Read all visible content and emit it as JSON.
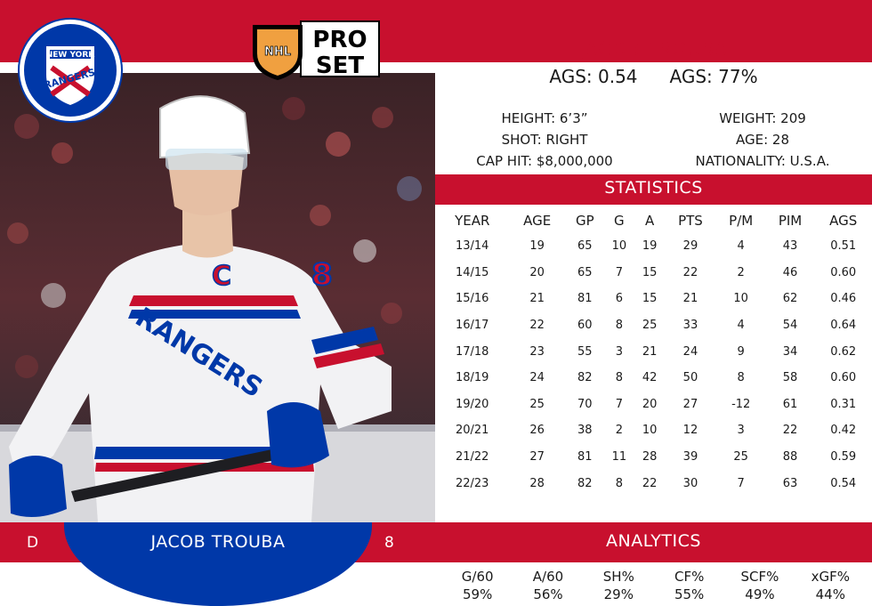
{
  "player": {
    "name": "JACOB TROUBA",
    "position": "D",
    "number": "8"
  },
  "ags_summary": {
    "score": "AGS: 0.54",
    "percentile": "AGS: 77%"
  },
  "bio": {
    "height": "HEIGHT: 6’3”",
    "shot": "SHOT: RIGHT",
    "cap_hit": "CAP HIT: $8,000,000",
    "weight": "WEIGHT: 209",
    "age": "AGE: 28",
    "nationality": "NATIONALITY: U.S.A."
  },
  "team_logo": {
    "line1": "NEW YORK",
    "line2": "RANGERS"
  },
  "brand_logo": {
    "league": "NHL",
    "line1": "PRO",
    "line2": "SET"
  },
  "jersey": {
    "letters": "RANGERS",
    "captain": "C",
    "number": "8"
  },
  "sections": {
    "statistics": "STATISTICS",
    "analytics": "ANALYTICS"
  },
  "stats": {
    "headers": [
      "YEAR",
      "AGE",
      "GP",
      "G",
      "A",
      "PTS",
      "P/M",
      "PIM",
      "AGS"
    ],
    "rows": [
      [
        "13/14",
        "19",
        "65",
        "10",
        "19",
        "29",
        "4",
        "43",
        "0.51"
      ],
      [
        "14/15",
        "20",
        "65",
        "7",
        "15",
        "22",
        "2",
        "46",
        "0.60"
      ],
      [
        "15/16",
        "21",
        "81",
        "6",
        "15",
        "21",
        "10",
        "62",
        "0.46"
      ],
      [
        "16/17",
        "22",
        "60",
        "8",
        "25",
        "33",
        "4",
        "54",
        "0.64"
      ],
      [
        "17/18",
        "23",
        "55",
        "3",
        "21",
        "24",
        "9",
        "34",
        "0.62"
      ],
      [
        "18/19",
        "24",
        "82",
        "8",
        "42",
        "50",
        "8",
        "58",
        "0.60"
      ],
      [
        "19/20",
        "25",
        "70",
        "7",
        "20",
        "27",
        "-12",
        "61",
        "0.31"
      ],
      [
        "20/21",
        "26",
        "38",
        "2",
        "10",
        "12",
        "3",
        "22",
        "0.42"
      ],
      [
        "21/22",
        "27",
        "81",
        "11",
        "28",
        "39",
        "25",
        "88",
        "0.59"
      ],
      [
        "22/23",
        "28",
        "82",
        "8",
        "22",
        "30",
        "7",
        "63",
        "0.54"
      ]
    ]
  },
  "analytics": [
    {
      "label": "G/60",
      "value": "59%"
    },
    {
      "label": "A/60",
      "value": "56%"
    },
    {
      "label": "SH%",
      "value": "29%"
    },
    {
      "label": "CF%",
      "value": "55%"
    },
    {
      "label": "SCF%",
      "value": "49%"
    },
    {
      "label": "xGF%",
      "value": "44%"
    }
  ],
  "colors": {
    "red": "#c8102e",
    "blue": "#0038a8",
    "white": "#ffffff"
  }
}
